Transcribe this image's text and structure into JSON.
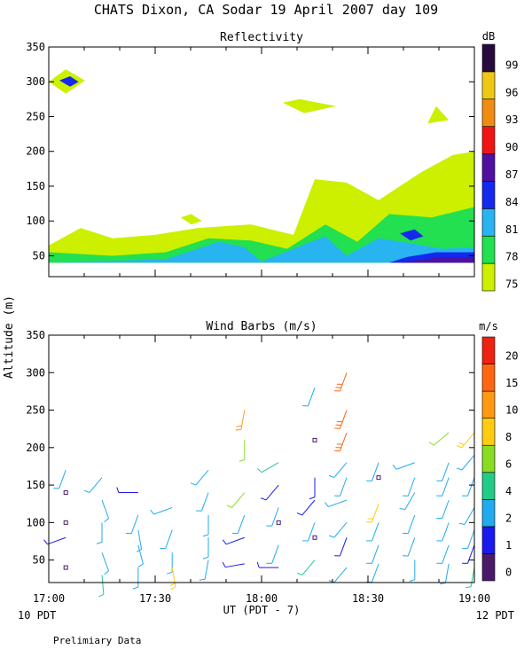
{
  "header": {
    "title": "CHATS Dixon, CA  Sodar  19 April 2007  day 109"
  },
  "footer": {
    "note": "Prelimiary Data"
  },
  "chart_data": [
    {
      "type": "heatmap",
      "title": "Reflectivity",
      "ylabel": "Altitude (m)",
      "xlabel": "UT  (PDT - 7)",
      "x_ticks": [
        "17:00",
        "17:30",
        "18:00",
        "18:30",
        "19:00"
      ],
      "x_sublabels": [
        "10 PDT",
        "12 PDT"
      ],
      "y_ticks": [
        50,
        100,
        150,
        200,
        250,
        300,
        350
      ],
      "ylim": [
        20,
        350
      ],
      "xlim_hours": [
        17.0,
        19.0
      ],
      "colorbar": {
        "unit": "dB",
        "levels": [
          75,
          78,
          81,
          84,
          87,
          90,
          93,
          96,
          99
        ],
        "colors": [
          "#ccf000",
          "#22e050",
          "#28b4f0",
          "#1428ee",
          "#5010a0",
          "#f01414",
          "#f08c14",
          "#f0c814",
          "#280a3c"
        ]
      },
      "contours": [
        {
          "level": 75,
          "points": [
            [
              17.0,
              65
            ],
            [
              17.15,
              90
            ],
            [
              17.3,
              75
            ],
            [
              17.5,
              80
            ],
            [
              17.7,
              90
            ],
            [
              17.95,
              95
            ],
            [
              18.15,
              80
            ],
            [
              18.25,
              160
            ],
            [
              18.4,
              155
            ],
            [
              18.55,
              130
            ],
            [
              18.75,
              170
            ],
            [
              18.9,
              195
            ],
            [
              19.0,
              200
            ],
            [
              19.0,
              40
            ],
            [
              17.0,
              40
            ]
          ]
        },
        {
          "level": 75,
          "points": [
            [
              17.0,
              300
            ],
            [
              17.08,
              318
            ],
            [
              17.17,
              302
            ],
            [
              17.08,
              283
            ]
          ]
        },
        {
          "level": 75,
          "points": [
            [
              18.1,
              270
            ],
            [
              18.18,
              275
            ],
            [
              18.35,
              265
            ],
            [
              18.2,
              255
            ]
          ]
        },
        {
          "level": 75,
          "points": [
            [
              18.78,
              240
            ],
            [
              18.82,
              265
            ],
            [
              18.88,
              245
            ]
          ]
        },
        {
          "level": 75,
          "points": [
            [
              17.62,
              105
            ],
            [
              17.67,
              110
            ],
            [
              17.72,
              100
            ],
            [
              17.67,
              95
            ]
          ]
        },
        {
          "level": 78,
          "points": [
            [
              17.0,
              55
            ],
            [
              17.3,
              50
            ],
            [
              17.55,
              55
            ],
            [
              17.75,
              75
            ],
            [
              17.95,
              72
            ],
            [
              18.12,
              60
            ],
            [
              18.3,
              95
            ],
            [
              18.45,
              70
            ],
            [
              18.6,
              110
            ],
            [
              18.8,
              105
            ],
            [
              19.0,
              120
            ],
            [
              19.0,
              40
            ],
            [
              17.0,
              40
            ]
          ]
        },
        {
          "level": 81,
          "points": [
            [
              17.55,
              45
            ],
            [
              17.8,
              70
            ],
            [
              17.92,
              62
            ],
            [
              18.0,
              42
            ],
            [
              18.3,
              78
            ],
            [
              18.4,
              50
            ],
            [
              18.55,
              75
            ],
            [
              18.7,
              68
            ],
            [
              18.85,
              60
            ],
            [
              19.0,
              62
            ],
            [
              19.0,
              40
            ],
            [
              17.0,
              40
            ]
          ]
        },
        {
          "level": 84,
          "points": [
            [
              17.05,
              302
            ],
            [
              17.1,
              308
            ],
            [
              17.14,
              300
            ],
            [
              17.1,
              293
            ]
          ]
        },
        {
          "level": 84,
          "points": [
            [
              18.65,
              82
            ],
            [
              18.72,
              88
            ],
            [
              18.76,
              78
            ],
            [
              18.7,
              72
            ]
          ]
        },
        {
          "level": 84,
          "points": [
            [
              18.68,
              48
            ],
            [
              18.82,
              55
            ],
            [
              19.0,
              55
            ],
            [
              19.0,
              40
            ],
            [
              18.6,
              40
            ]
          ]
        },
        {
          "level": 87,
          "points": [
            [
              18.7,
              42
            ],
            [
              18.85,
              48
            ],
            [
              19.0,
              48
            ],
            [
              19.0,
              40
            ],
            [
              18.65,
              40
            ]
          ]
        }
      ]
    },
    {
      "type": "scatter",
      "title": "Wind Barbs (m/s)",
      "ylabel": "Altitude (m)",
      "xlabel": "UT  (PDT - 7)",
      "x_ticks": [
        "17:00",
        "17:30",
        "18:00",
        "18:30",
        "19:00"
      ],
      "y_ticks": [
        50,
        100,
        150,
        200,
        250,
        300,
        350
      ],
      "ylim": [
        20,
        350
      ],
      "xlim_hours": [
        17.0,
        19.0
      ],
      "colorbar": {
        "unit": "m/s",
        "ticks": [
          0,
          1,
          2,
          4,
          6,
          8,
          10,
          15,
          20
        ],
        "colors": [
          "#4a1a6a",
          "#1a1aee",
          "#22aaee",
          "#22cc88",
          "#88dd22",
          "#ffcc11",
          "#ff9911",
          "#ff6611",
          "#ee2211"
        ]
      },
      "barbs": [
        {
          "t": 17.08,
          "z": 170,
          "dir": 200,
          "spd": 2.5
        },
        {
          "t": 17.08,
          "z": 140,
          "dir": 0,
          "spd": 0
        },
        {
          "t": 17.08,
          "z": 100,
          "dir": 0,
          "spd": 0
        },
        {
          "t": 17.08,
          "z": 80,
          "dir": 250,
          "spd": 1
        },
        {
          "t": 17.08,
          "z": 40,
          "dir": 0,
          "spd": 0
        },
        {
          "t": 17.25,
          "z": 160,
          "dir": 220,
          "spd": 2.5
        },
        {
          "t": 17.25,
          "z": 130,
          "dir": 160,
          "spd": 2
        },
        {
          "t": 17.25,
          "z": 100,
          "dir": 180,
          "spd": 3
        },
        {
          "t": 17.25,
          "z": 60,
          "dir": 160,
          "spd": 3
        },
        {
          "t": 17.25,
          "z": 30,
          "dir": 175,
          "spd": 5
        },
        {
          "t": 17.42,
          "z": 140,
          "dir": 270,
          "spd": 1
        },
        {
          "t": 17.42,
          "z": 110,
          "dir": 200,
          "spd": 2
        },
        {
          "t": 17.42,
          "z": 90,
          "dir": 170,
          "spd": 3
        },
        {
          "t": 17.42,
          "z": 70,
          "dir": 165,
          "spd": 2.5
        },
        {
          "t": 17.42,
          "z": 40,
          "dir": 180,
          "spd": 3
        },
        {
          "t": 17.58,
          "z": 120,
          "dir": 250,
          "spd": 2
        },
        {
          "t": 17.58,
          "z": 90,
          "dir": 200,
          "spd": 2
        },
        {
          "t": 17.58,
          "z": 60,
          "dir": 180,
          "spd": 2
        },
        {
          "t": 17.58,
          "z": 40,
          "dir": 170,
          "spd": 8
        },
        {
          "t": 17.75,
          "z": 170,
          "dir": 220,
          "spd": 2
        },
        {
          "t": 17.75,
          "z": 140,
          "dir": 200,
          "spd": 2
        },
        {
          "t": 17.75,
          "z": 110,
          "dir": 180,
          "spd": 2
        },
        {
          "t": 17.75,
          "z": 80,
          "dir": 180,
          "spd": 2
        },
        {
          "t": 17.75,
          "z": 50,
          "dir": 190,
          "spd": 2
        },
        {
          "t": 17.92,
          "z": 250,
          "dir": 190,
          "spd": 10
        },
        {
          "t": 17.92,
          "z": 210,
          "dir": 180,
          "spd": 6
        },
        {
          "t": 17.92,
          "z": 140,
          "dir": 220,
          "spd": 6
        },
        {
          "t": 17.92,
          "z": 110,
          "dir": 200,
          "spd": 3
        },
        {
          "t": 17.92,
          "z": 80,
          "dir": 250,
          "spd": 1
        },
        {
          "t": 17.92,
          "z": 45,
          "dir": 260,
          "spd": 1
        },
        {
          "t": 18.08,
          "z": 180,
          "dir": 240,
          "spd": 4
        },
        {
          "t": 18.08,
          "z": 150,
          "dir": 220,
          "spd": 1
        },
        {
          "t": 18.08,
          "z": 120,
          "dir": 200,
          "spd": 2
        },
        {
          "t": 18.08,
          "z": 100,
          "dir": 0,
          "spd": 0
        },
        {
          "t": 18.08,
          "z": 70,
          "dir": 200,
          "spd": 2
        },
        {
          "t": 18.08,
          "z": 40,
          "dir": 270,
          "spd": 1
        },
        {
          "t": 18.25,
          "z": 280,
          "dir": 200,
          "spd": 2
        },
        {
          "t": 18.25,
          "z": 210,
          "dir": 0,
          "spd": 0
        },
        {
          "t": 18.25,
          "z": 160,
          "dir": 180,
          "spd": 1
        },
        {
          "t": 18.25,
          "z": 130,
          "dir": 220,
          "spd": 1
        },
        {
          "t": 18.25,
          "z": 100,
          "dir": 200,
          "spd": 2
        },
        {
          "t": 18.25,
          "z": 80,
          "dir": 0,
          "spd": 0
        },
        {
          "t": 18.25,
          "z": 50,
          "dir": 220,
          "spd": 4
        },
        {
          "t": 18.4,
          "z": 300,
          "dir": 200,
          "spd": 15
        },
        {
          "t": 18.4,
          "z": 250,
          "dir": 200,
          "spd": 15
        },
        {
          "t": 18.4,
          "z": 220,
          "dir": 200,
          "spd": 15
        },
        {
          "t": 18.4,
          "z": 180,
          "dir": 220,
          "spd": 2
        },
        {
          "t": 18.4,
          "z": 160,
          "dir": 200,
          "spd": 2
        },
        {
          "t": 18.4,
          "z": 130,
          "dir": 250,
          "spd": 2
        },
        {
          "t": 18.4,
          "z": 100,
          "dir": 220,
          "spd": 2
        },
        {
          "t": 18.4,
          "z": 80,
          "dir": 200,
          "spd": 1
        },
        {
          "t": 18.4,
          "z": 40,
          "dir": 220,
          "spd": 2
        },
        {
          "t": 18.55,
          "z": 180,
          "dir": 200,
          "spd": 2
        },
        {
          "t": 18.55,
          "z": 160,
          "dir": 0,
          "spd": 0
        },
        {
          "t": 18.55,
          "z": 125,
          "dir": 200,
          "spd": 8
        },
        {
          "t": 18.55,
          "z": 100,
          "dir": 200,
          "spd": 2
        },
        {
          "t": 18.55,
          "z": 70,
          "dir": 200,
          "spd": 2
        },
        {
          "t": 18.55,
          "z": 45,
          "dir": 200,
          "spd": 2
        },
        {
          "t": 18.72,
          "z": 180,
          "dir": 250,
          "spd": 3
        },
        {
          "t": 18.72,
          "z": 160,
          "dir": 200,
          "spd": 2
        },
        {
          "t": 18.72,
          "z": 140,
          "dir": 210,
          "spd": 2
        },
        {
          "t": 18.72,
          "z": 110,
          "dir": 200,
          "spd": 2
        },
        {
          "t": 18.72,
          "z": 80,
          "dir": 200,
          "spd": 2
        },
        {
          "t": 18.72,
          "z": 50,
          "dir": 180,
          "spd": 2
        },
        {
          "t": 18.88,
          "z": 220,
          "dir": 230,
          "spd": 6
        },
        {
          "t": 18.88,
          "z": 180,
          "dir": 200,
          "spd": 2
        },
        {
          "t": 18.88,
          "z": 160,
          "dir": 200,
          "spd": 2
        },
        {
          "t": 18.88,
          "z": 130,
          "dir": 200,
          "spd": 2
        },
        {
          "t": 18.88,
          "z": 100,
          "dir": 200,
          "spd": 2
        },
        {
          "t": 18.88,
          "z": 70,
          "dir": 200,
          "spd": 2
        },
        {
          "t": 18.88,
          "z": 45,
          "dir": 190,
          "spd": 3
        },
        {
          "t": 19.0,
          "z": 220,
          "dir": 220,
          "spd": 8
        },
        {
          "t": 19.0,
          "z": 190,
          "dir": 220,
          "spd": 3
        },
        {
          "t": 19.0,
          "z": 160,
          "dir": 200,
          "spd": 2
        },
        {
          "t": 19.0,
          "z": 120,
          "dir": 210,
          "spd": 2
        },
        {
          "t": 19.0,
          "z": 90,
          "dir": 200,
          "spd": 2
        },
        {
          "t": 19.0,
          "z": 70,
          "dir": 200,
          "spd": 1
        },
        {
          "t": 19.0,
          "z": 40,
          "dir": 190,
          "spd": 4
        }
      ]
    }
  ]
}
